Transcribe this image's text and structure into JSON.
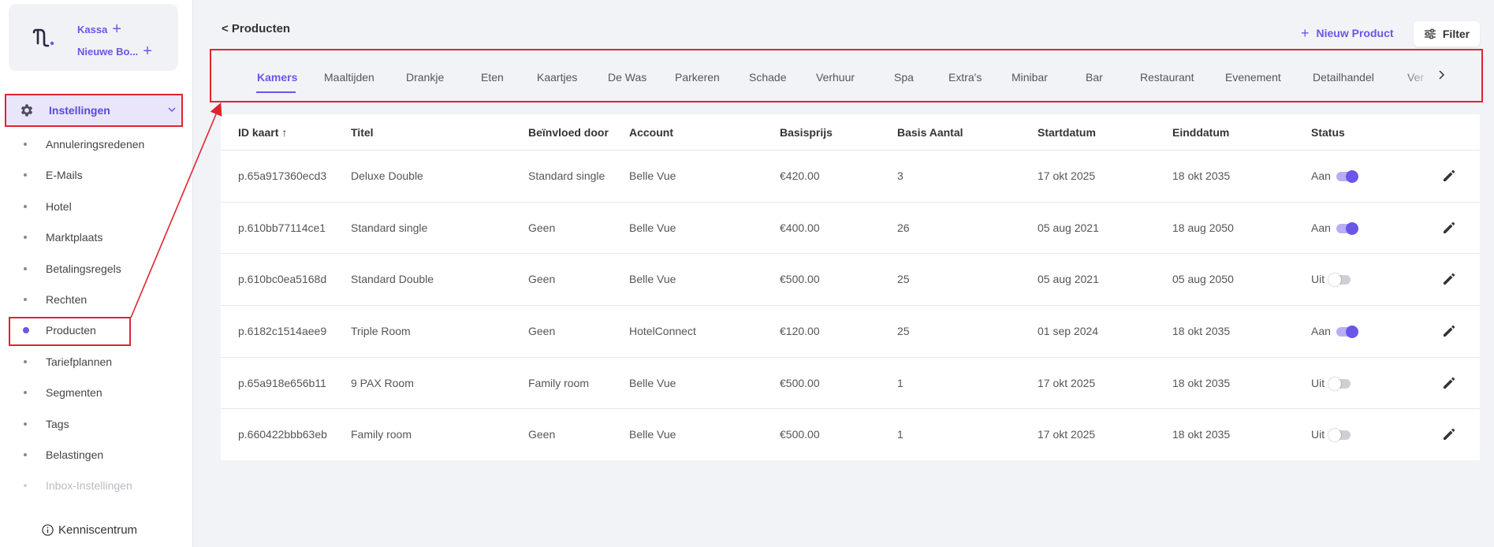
{
  "brand": {
    "line1": "Kassa",
    "line2": "Nieuwe Bo...",
    "plus": "+"
  },
  "sidebar": {
    "main_label": "Instellingen",
    "items": [
      {
        "label": "Annuleringsredenen"
      },
      {
        "label": "E-Mails"
      },
      {
        "label": "Hotel"
      },
      {
        "label": "Marktplaats"
      },
      {
        "label": "Betalingsregels"
      },
      {
        "label": "Rechten"
      },
      {
        "label": "Producten"
      },
      {
        "label": "Tariefplannen"
      },
      {
        "label": "Segmenten"
      },
      {
        "label": "Tags"
      },
      {
        "label": "Belastingen"
      },
      {
        "label": "Inbox-Instellingen"
      }
    ],
    "active_index": 6,
    "disabled_index": 11,
    "help_label": "Kenniscentrum"
  },
  "header": {
    "title": "< Producten",
    "new_product_label": "Nieuw Product",
    "filter_label": "Filter"
  },
  "tabs": [
    "Kamers",
    "Maaltijden",
    "Drankje",
    "Eten",
    "Kaartjes",
    "De Was",
    "Parkeren",
    "Schade",
    "Verhuur",
    "Spa",
    "Extra's",
    "Minibar",
    "Bar",
    "Restaurant",
    "Evenement",
    "Detailhandel",
    "Ver"
  ],
  "table": {
    "columns": [
      "ID kaart",
      "Titel",
      "Beïnvloed door",
      "Account",
      "Basisprijs",
      "Basis Aantal",
      "Startdatum",
      "Einddatum",
      "Status"
    ],
    "sort_indicator": "↑",
    "rows": [
      {
        "id": "p.65a917360ecd3",
        "title": "Deluxe Double",
        "influenced": "Standard single",
        "account": "Belle Vue",
        "price": "€420.00",
        "qty": "3",
        "start": "17 okt 2025",
        "end": "18 okt 2035",
        "status": "Aan",
        "on": true
      },
      {
        "id": "p.610bb77114ce1",
        "title": "Standard single",
        "influenced": "Geen",
        "account": "Belle Vue",
        "price": "€400.00",
        "qty": "26",
        "start": "05 aug 2021",
        "end": "18 aug 2050",
        "status": "Aan",
        "on": true
      },
      {
        "id": "p.610bc0ea5168d",
        "title": "Standard Double",
        "influenced": "Geen",
        "account": "Belle Vue",
        "price": "€500.00",
        "qty": "25",
        "start": "05 aug 2021",
        "end": "05 aug 2050",
        "status": "Uit",
        "on": false
      },
      {
        "id": "p.6182c1514aee9",
        "title": "Triple Room",
        "influenced": "Geen",
        "account": "HotelConnect",
        "price": "€120.00",
        "qty": "25",
        "start": "01 sep 2024",
        "end": "18 okt 2035",
        "status": "Aan",
        "on": true
      },
      {
        "id": "p.65a918e656b11",
        "title": "9 PAX Room",
        "influenced": "Family room",
        "account": "Belle Vue",
        "price": "€500.00",
        "qty": "1",
        "start": "17 okt 2025",
        "end": "18 okt 2035",
        "status": "Uit",
        "on": false
      },
      {
        "id": "p.660422bbb63eb",
        "title": "Family room",
        "influenced": "Geen",
        "account": "Belle Vue",
        "price": "€500.00",
        "qty": "1",
        "start": "17 okt 2025",
        "end": "18 okt 2035",
        "status": "Uit",
        "on": false
      }
    ]
  },
  "colors": {
    "accent": "#6a56e8",
    "highlight": "#e0242f"
  }
}
